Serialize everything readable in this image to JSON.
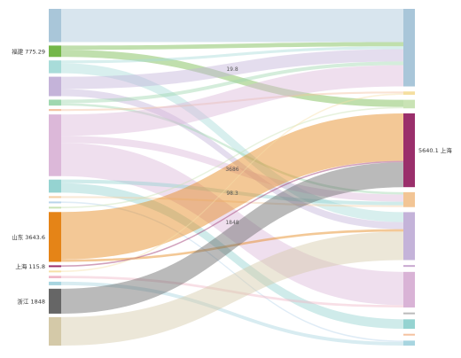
{
  "chart_data": {
    "type": "sankey",
    "left_nodes": [
      {
        "id": "L1",
        "label": "",
        "color": "#a9c6d9"
      },
      {
        "id": "L2",
        "label": "福建",
        "value": "775.29",
        "color": "#74b749"
      },
      {
        "id": "L3",
        "label": "",
        "color": "#a8dcd9"
      },
      {
        "id": "L4",
        "label": "",
        "color": "#c4b3d9"
      },
      {
        "id": "L5",
        "label": "",
        "color": "#9fd8b0"
      },
      {
        "id": "L6",
        "label": "",
        "color": "#f4c2a0"
      },
      {
        "id": "L7",
        "label": "",
        "color": "#dcb8d9"
      },
      {
        "id": "L8",
        "label": "",
        "color": "#95d3d1"
      },
      {
        "id": "L9",
        "label": "",
        "color": "#f5d0a8"
      },
      {
        "id": "L10",
        "label": "",
        "color": "#b8d4ea"
      },
      {
        "id": "L11",
        "label": "",
        "color": "#c9e3b5"
      },
      {
        "id": "L12",
        "label": "山东",
        "value": "3643.6",
        "color": "#e58417"
      },
      {
        "id": "L13",
        "label": "上海",
        "value": "115.8",
        "color": "#9a2f6b"
      },
      {
        "id": "L14",
        "label": "",
        "color": "#f6e0a8"
      },
      {
        "id": "L15",
        "label": "",
        "color": "#f0b8c8"
      },
      {
        "id": "L16",
        "label": "",
        "color": "#a8d5e0"
      },
      {
        "id": "L17",
        "label": "浙江",
        "value": "1848",
        "color": "#666666"
      },
      {
        "id": "L18",
        "label": "",
        "color": "#d4c9a8"
      }
    ],
    "right_nodes": [
      {
        "id": "R1",
        "label": "",
        "color": "#a9c6d9"
      },
      {
        "id": "R2",
        "label": "",
        "color": "#f5dfa0"
      },
      {
        "id": "R3",
        "label": "",
        "color": "#c9e3b5"
      },
      {
        "id": "R4",
        "label": "上海",
        "value": "5640.1",
        "color": "#9a2f6b"
      },
      {
        "id": "R5",
        "label": "",
        "color": "#f2c595"
      },
      {
        "id": "R6",
        "label": "",
        "color": "#c4b3d9"
      },
      {
        "id": "R7",
        "label": "",
        "color": "#c9a8d0"
      },
      {
        "id": "R8",
        "label": "",
        "color": "#d9b3d6"
      },
      {
        "id": "R9",
        "label": "",
        "color": "#bbbbbb"
      },
      {
        "id": "R10",
        "label": "",
        "color": "#95d3d1"
      },
      {
        "id": "R11",
        "label": "",
        "color": "#f4c2a0"
      },
      {
        "id": "R12",
        "label": "",
        "color": "#a8d5e0"
      }
    ],
    "flows": [
      {
        "from": "L1",
        "to": "R1",
        "value": 1400
      },
      {
        "from": "L2",
        "to": "R3",
        "value": 300
      },
      {
        "from": "L2",
        "to": "R1",
        "value": 180
      },
      {
        "from": "L3",
        "to": "R6",
        "value": 420
      },
      {
        "from": "L3",
        "to": "R1",
        "value": 120
      },
      {
        "from": "L4",
        "to": "R1",
        "value": 520
      },
      {
        "from": "L4",
        "to": "R6",
        "value": 300
      },
      {
        "from": "L5",
        "to": "R1",
        "value": 150
      },
      {
        "from": "L5",
        "to": "R5",
        "value": 100
      },
      {
        "from": "L6",
        "to": "R2",
        "value": 80
      },
      {
        "from": "L7",
        "to": "R1",
        "value": 900
      },
      {
        "from": "L7",
        "to": "R8",
        "value": 1400
      },
      {
        "from": "L7",
        "to": "R5",
        "value": 300
      },
      {
        "from": "L8",
        "to": "R10",
        "value": 400
      },
      {
        "from": "L8",
        "to": "R5",
        "value": 150
      },
      {
        "from": "L9",
        "to": "R5",
        "value": 80
      },
      {
        "from": "L10",
        "to": "R12",
        "value": 60
      },
      {
        "from": "L11",
        "to": "R3",
        "value": 60
      },
      {
        "from": "L12",
        "to": "R4",
        "value": 2000
      },
      {
        "from": "L12",
        "to": "R6",
        "value": 100
      },
      {
        "from": "L13",
        "to": "R4",
        "value": 60
      },
      {
        "from": "L14",
        "to": "R2",
        "value": 60
      },
      {
        "from": "L15",
        "to": "R8",
        "value": 100
      },
      {
        "from": "L16",
        "to": "R12",
        "value": 150
      },
      {
        "from": "L17",
        "to": "R4",
        "value": 1050
      },
      {
        "from": "L18",
        "to": "R6",
        "value": 1200
      }
    ],
    "flow_labels": [
      "19.8",
      "3686",
      "98.3",
      "1848"
    ]
  }
}
